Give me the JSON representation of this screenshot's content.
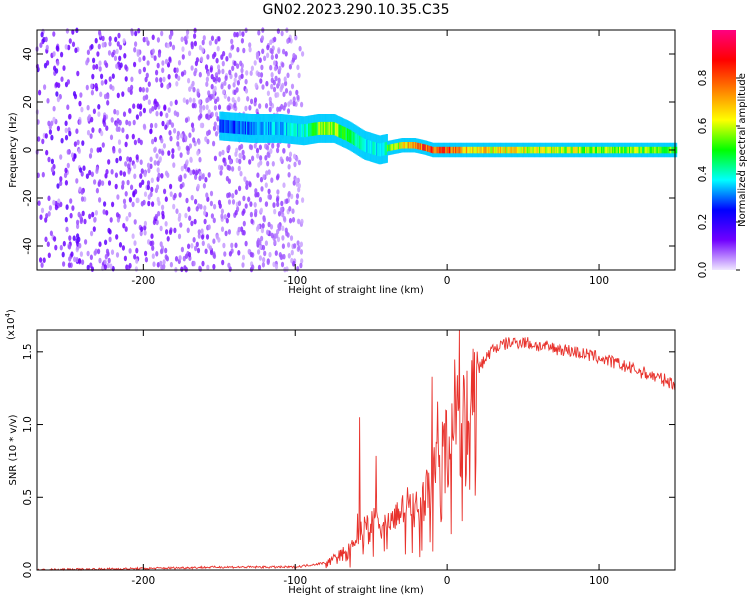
{
  "figure": {
    "title": "GN02.2023.290.10.35.C35"
  },
  "chart_data": [
    {
      "type": "heatmap",
      "xlabel": "Height of straight line (km)",
      "ylabel": "Frequency (Hz)",
      "xlim": [
        -270,
        150
      ],
      "ylim": [
        -50,
        50
      ],
      "x_ticks": [
        -200,
        -100,
        0,
        100
      ],
      "y_ticks": [
        40,
        20,
        0,
        -20,
        -40
      ],
      "colorbar": {
        "label": "Normalized spectral amplitude",
        "range": [
          0,
          1
        ],
        "ticks": [
          "0.0",
          "0.2",
          "0.4",
          "0.6",
          "0.8"
        ],
        "colormap": [
          "#f0e8ff",
          "#7000ff",
          "#0000ff",
          "#00ffff",
          "#00ff00",
          "#ffff00",
          "#ff8000",
          "#ff0000",
          "#ff0080"
        ]
      },
      "signal_track": {
        "x": [
          -150,
          -130,
          -110,
          -95,
          -85,
          -75,
          -65,
          -55,
          -45,
          -38,
          -30,
          -22,
          -15,
          -10,
          -5,
          0,
          20,
          60,
          100,
          150
        ],
        "frequency": [
          10,
          9,
          9,
          8,
          9,
          9,
          6,
          2,
          0,
          1,
          2,
          2,
          1,
          0,
          0,
          0,
          0,
          0,
          0,
          0
        ],
        "peak_amplitude": [
          0.3,
          0.35,
          0.4,
          0.45,
          0.6,
          0.65,
          0.55,
          0.45,
          0.4,
          0.6,
          0.75,
          0.85,
          0.95,
          0.9,
          0.9,
          0.9,
          0.75,
          0.7,
          0.65,
          0.6
        ]
      },
      "noise_region_x": [
        -270,
        -95
      ]
    },
    {
      "type": "line",
      "xlabel": "Height of straight line (km)",
      "ylabel": "SNR (10 * v/v)",
      "y_multiplier": "(x10^4)",
      "xlim": [
        -270,
        150
      ],
      "ylim": [
        0,
        1.65
      ],
      "x_ticks": [
        -200,
        -100,
        0,
        100
      ],
      "y_ticks": [
        "0.0",
        "0.5",
        "1.0",
        "1.5"
      ],
      "series": [
        {
          "color": "#e8322c",
          "x": [
            -270,
            -200,
            -150,
            -100,
            -80,
            -65,
            -55,
            -48,
            -42,
            -35,
            -28,
            -20,
            -10,
            0,
            10,
            20,
            30,
            40,
            50,
            60,
            80,
            100,
            120,
            150
          ],
          "y": [
            0.0,
            0.01,
            0.02,
            0.02,
            0.05,
            0.15,
            0.3,
            0.35,
            0.3,
            0.35,
            0.45,
            0.5,
            0.65,
            0.95,
            1.2,
            1.38,
            1.52,
            1.56,
            1.57,
            1.54,
            1.51,
            1.46,
            1.39,
            1.28
          ]
        }
      ]
    }
  ]
}
